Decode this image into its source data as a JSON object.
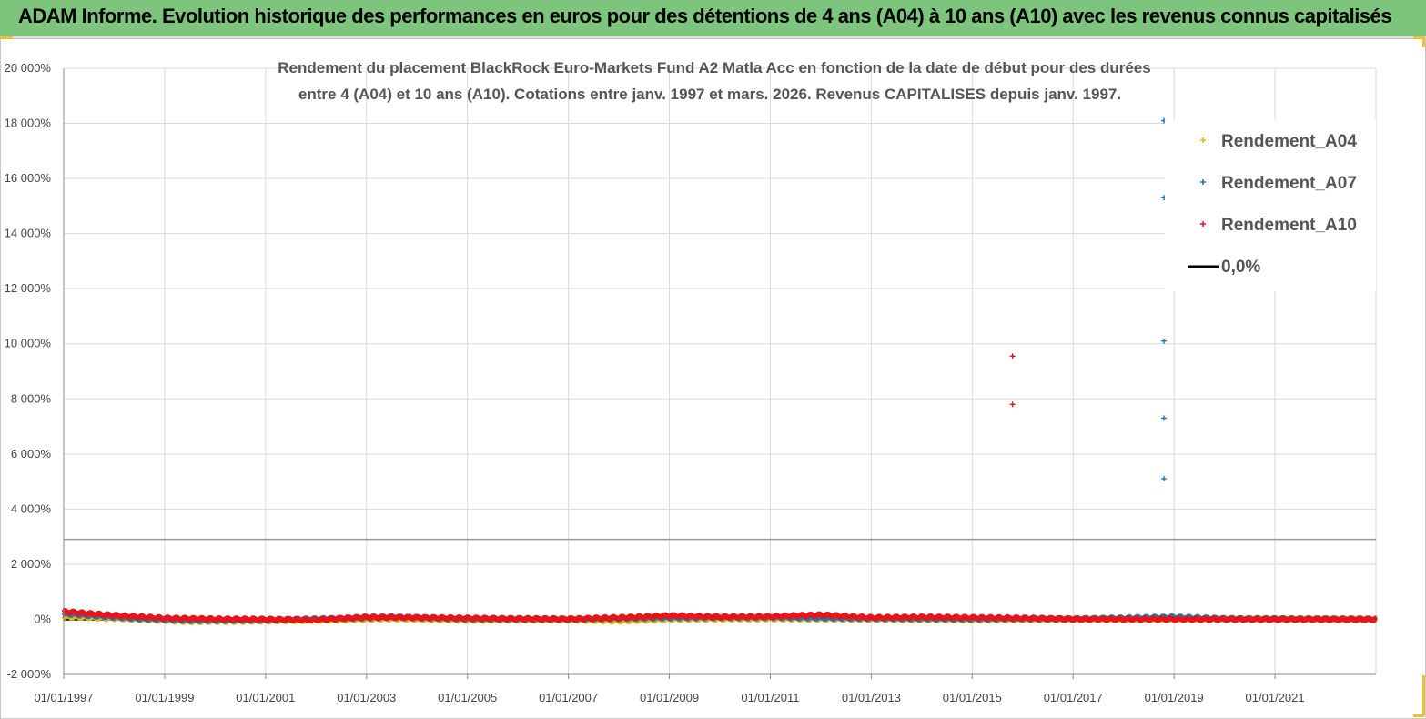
{
  "header": {
    "title": "ADAM Informe. Evolution historique des performances en euros pour des détentions de 4 ans (A04) à 10 ans (A10) avec les revenus connus capitalisés"
  },
  "chart_data": {
    "type": "scatter",
    "title_lines": [
      "Rendement du placement BlackRock Euro-Markets Fund A2 Matla Acc en fonction de la date de début pour des durées",
      "entre 4 (A04) et 10 ans (A10). Cotations entre janv. 1997 et mars. 2026. Revenus CAPITALISES depuis janv. 1997."
    ],
    "ylim": [
      -2000,
      20000
    ],
    "y_ticks": [
      -2000,
      0,
      2000,
      4000,
      6000,
      8000,
      10000,
      12000,
      14000,
      16000,
      18000,
      20000
    ],
    "y_tick_labels": [
      "-2 000%",
      "0%",
      "2 000%",
      "4 000%",
      "6 000%",
      "8 000%",
      "10 000%",
      "12 000%",
      "14 000%",
      "16 000%",
      "18 000%",
      "20 000%"
    ],
    "xlim": [
      1997.0,
      2023.0
    ],
    "x_ticks": [
      1997,
      1999,
      2001,
      2003,
      2005,
      2007,
      2009,
      2011,
      2013,
      2015,
      2017,
      2019,
      2021
    ],
    "x_tick_labels": [
      "01/01/1997",
      "01/01/1999",
      "01/01/2001",
      "01/01/2003",
      "01/01/2005",
      "01/01/2007",
      "01/01/2009",
      "01/01/2011",
      "01/01/2013",
      "01/01/2015",
      "01/01/2017",
      "01/01/2019",
      "01/01/2021"
    ],
    "reference_line_y": 2900,
    "legend_position": "top-right",
    "series": [
      {
        "name": "Rendement_A04",
        "color": "#f0b400",
        "band": [
          [
            1997.0,
            100
          ],
          [
            1998.5,
            0
          ],
          [
            1999.5,
            -80
          ],
          [
            2001.0,
            -60
          ],
          [
            2002.5,
            -20
          ],
          [
            2003.5,
            20
          ],
          [
            2005.0,
            -30
          ],
          [
            2007.0,
            -20
          ],
          [
            2008.0,
            -60
          ],
          [
            2009.0,
            0
          ],
          [
            2011.0,
            20
          ],
          [
            2013.0,
            0
          ],
          [
            2015.0,
            -20
          ],
          [
            2016.0,
            -10
          ],
          [
            2017.0,
            0
          ],
          [
            2019.0,
            10
          ],
          [
            2020.0,
            20
          ],
          [
            2023.0,
            -10
          ]
        ],
        "outliers": []
      },
      {
        "name": "Rendement_A07",
        "color": "#1f77b4",
        "band": [
          [
            1997.0,
            200
          ],
          [
            1998.5,
            20
          ],
          [
            1999.5,
            -40
          ],
          [
            2001.0,
            -30
          ],
          [
            2002.5,
            30
          ],
          [
            2003.5,
            80
          ],
          [
            2005.0,
            10
          ],
          [
            2007.0,
            0
          ],
          [
            2009.0,
            60
          ],
          [
            2011.0,
            70
          ],
          [
            2013.0,
            30
          ],
          [
            2015.0,
            10
          ],
          [
            2016.0,
            20
          ],
          [
            2017.0,
            10
          ],
          [
            2019.0,
            80
          ],
          [
            2020.0,
            20
          ],
          [
            2023.0,
            0
          ]
        ],
        "outliers": [
          [
            2018.8,
            18100
          ],
          [
            2018.8,
            15300
          ],
          [
            2018.8,
            10100
          ],
          [
            2018.8,
            7300
          ],
          [
            2018.8,
            5100
          ]
        ]
      },
      {
        "name": "Rendement_A10",
        "color": "#e8141b",
        "band": [
          [
            1997.0,
            280
          ],
          [
            1998.0,
            140
          ],
          [
            1999.0,
            40
          ],
          [
            2000.0,
            10
          ],
          [
            2001.0,
            0
          ],
          [
            2002.0,
            -20
          ],
          [
            2003.0,
            80
          ],
          [
            2004.0,
            60
          ],
          [
            2005.0,
            40
          ],
          [
            2006.0,
            20
          ],
          [
            2007.0,
            10
          ],
          [
            2008.0,
            60
          ],
          [
            2009.0,
            130
          ],
          [
            2010.0,
            90
          ],
          [
            2011.0,
            100
          ],
          [
            2012.0,
            160
          ],
          [
            2013.0,
            60
          ],
          [
            2014.0,
            80
          ],
          [
            2015.0,
            60
          ],
          [
            2016.0,
            40
          ],
          [
            2017.0,
            10
          ],
          [
            2020.0,
            0
          ],
          [
            2023.0,
            0
          ]
        ],
        "outliers": [
          [
            2015.8,
            9550
          ],
          [
            2015.8,
            7800
          ]
        ]
      },
      {
        "name": "0,0%",
        "color": "#000000",
        "is_line": true
      }
    ]
  }
}
